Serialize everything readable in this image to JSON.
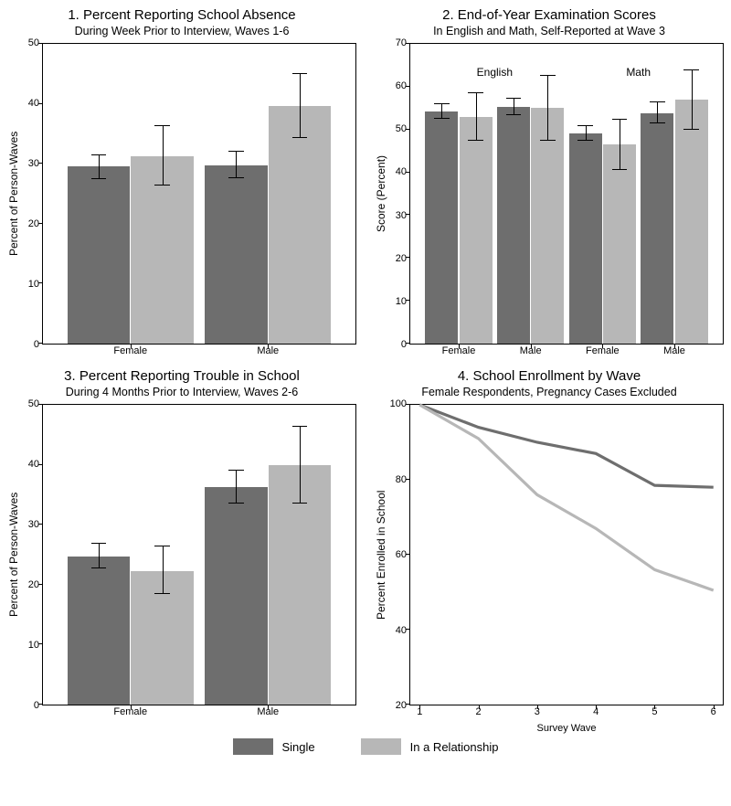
{
  "colors": {
    "single": "#6e6e6e",
    "relationship": "#b7b7b7",
    "axis": "#000000",
    "background": "#ffffff",
    "err": "#000000"
  },
  "typography": {
    "title_fontsize": 15,
    "subtitle_fontsize": 12.5,
    "axis_label_fontsize": 12,
    "tick_fontsize": 11
  },
  "legend": {
    "items": [
      {
        "label": "Single",
        "color_key": "single"
      },
      {
        "label": "In a Relationship",
        "color_key": "relationship"
      }
    ]
  },
  "panel1": {
    "title": "1. Percent Reporting School Absence",
    "subtitle": "During Week Prior to Interview, Waves 1-6",
    "ylabel": "Percent of Person-Waves",
    "ylim": [
      0,
      50
    ],
    "ytick_step": 10,
    "groups": [
      "Female",
      "Male"
    ],
    "series": [
      {
        "name": "Single",
        "color_key": "single",
        "values": [
          29.5,
          29.8
        ],
        "err_low": [
          27.5,
          27.6
        ],
        "err_high": [
          31.4,
          32.0
        ]
      },
      {
        "name": "In a Relationship",
        "color_key": "relationship",
        "values": [
          31.2,
          39.7
        ],
        "err_low": [
          26.3,
          34.3
        ],
        "err_high": [
          36.3,
          45.0
        ]
      }
    ],
    "bar_width": 0.2,
    "group_centers": [
      0.28,
      0.72
    ]
  },
  "panel2": {
    "title": "2. End-of-Year Examination Scores",
    "subtitle": "In English and Math, Self-Reported at Wave 3",
    "ylabel": "Score (Percent)",
    "ylim": [
      0,
      70
    ],
    "ytick_step": 10,
    "super_groups": [
      "English",
      "Math"
    ],
    "groups": [
      "Female",
      "Male",
      "Female",
      "Male"
    ],
    "series": [
      {
        "name": "Single",
        "color_key": "single",
        "values": [
          54.3,
          55.3,
          49.1,
          53.8
        ],
        "err_low": [
          52.6,
          53.4,
          47.4,
          51.5
        ],
        "err_high": [
          56.0,
          57.2,
          50.9,
          56.4
        ]
      },
      {
        "name": "In a Relationship",
        "color_key": "relationship",
        "values": [
          53.0,
          55.0,
          46.5,
          57.0
        ],
        "err_low": [
          47.4,
          47.4,
          40.6,
          50.0
        ],
        "err_high": [
          58.4,
          62.5,
          52.3,
          63.9
        ]
      }
    ],
    "bar_width": 0.105,
    "group_centers": [
      0.155,
      0.385,
      0.615,
      0.845
    ],
    "super_group_centers": [
      0.27,
      0.73
    ],
    "super_group_y": 62
  },
  "panel3": {
    "title": "3. Percent Reporting Trouble in School",
    "subtitle": "During 4 Months Prior to Interview, Waves 2-6",
    "ylabel": "Percent of Person-Waves",
    "ylim": [
      0,
      50
    ],
    "ytick_step": 10,
    "groups": [
      "Female",
      "Male"
    ],
    "series": [
      {
        "name": "Single",
        "color_key": "single",
        "values": [
          24.7,
          36.3
        ],
        "err_low": [
          22.7,
          33.5
        ],
        "err_high": [
          26.8,
          39.1
        ]
      },
      {
        "name": "In a Relationship",
        "color_key": "relationship",
        "values": [
          22.3,
          39.9
        ],
        "err_low": [
          18.4,
          33.5
        ],
        "err_high": [
          26.3,
          46.4
        ]
      }
    ],
    "bar_width": 0.2,
    "group_centers": [
      0.28,
      0.72
    ]
  },
  "panel4": {
    "title": "4. School Enrollment by Wave",
    "subtitle": "Female Respondents, Pregnancy Cases Excluded",
    "ylabel": "Percent Enrolled in School",
    "xlabel": "Survey Wave",
    "ylim": [
      20,
      100
    ],
    "ytick_step": 20,
    "xvalues": [
      1,
      2,
      3,
      4,
      5,
      6
    ],
    "lines": [
      {
        "name": "Single",
        "color_key": "single",
        "width": 3.2,
        "y": [
          100,
          94,
          90,
          87,
          78.5,
          78
        ]
      },
      {
        "name": "In a Relationship",
        "color_key": "relationship",
        "width": 3.2,
        "y": [
          100,
          91,
          76,
          67,
          56,
          50.5
        ]
      }
    ]
  }
}
